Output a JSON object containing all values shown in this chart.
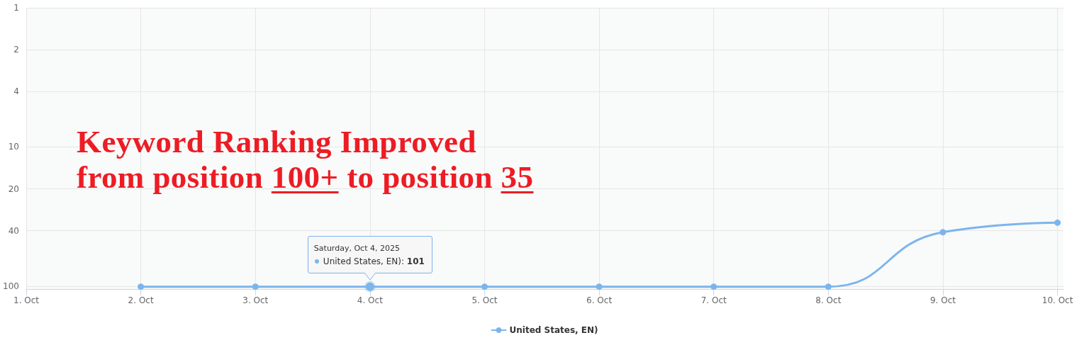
{
  "chart_data": {
    "type": "line",
    "x": [
      "2025-10-02",
      "2025-10-03",
      "2025-10-04",
      "2025-10-05",
      "2025-10-06",
      "2025-10-07",
      "2025-10-08",
      "2025-10-09",
      "2025-10-10"
    ],
    "series": [
      {
        "name": "United States, EN)",
        "color": "#7cb5ec",
        "values": [
          101,
          101,
          101,
          101,
          101,
          101,
          101,
          41,
          35
        ]
      }
    ],
    "xlim": [
      "2025-10-01",
      "2025-10-10T01:15"
    ],
    "xticks": [
      {
        "value": "2025-10-01",
        "label": "1. Oct"
      },
      {
        "value": "2025-10-02",
        "label": "2. Oct"
      },
      {
        "value": "2025-10-03",
        "label": "3. Oct"
      },
      {
        "value": "2025-10-04",
        "label": "4. Oct"
      },
      {
        "value": "2025-10-05",
        "label": "5. Oct"
      },
      {
        "value": "2025-10-06",
        "label": "6. Oct"
      },
      {
        "value": "2025-10-07",
        "label": "7. Oct"
      },
      {
        "value": "2025-10-08",
        "label": "8. Oct"
      },
      {
        "value": "2025-10-09",
        "label": "9. Oct"
      },
      {
        "value": "2025-10-10",
        "label": "10. Oct"
      }
    ],
    "ylim": [
      105,
      1
    ],
    "yticks": [
      1,
      2,
      4,
      10,
      20,
      40,
      100
    ],
    "log": "y",
    "grid": true,
    "legend": "bottom",
    "marker": "circle",
    "line_style": "solid",
    "annotations": [
      "Keyword Ranking Improved\nfrom position 100+ to position 35",
      {
        "text": "Saturday, Oct 4, 2025\nUnited States, EN): 101",
        "x": "2025-10-04",
        "y": 101
      }
    ]
  }
}
